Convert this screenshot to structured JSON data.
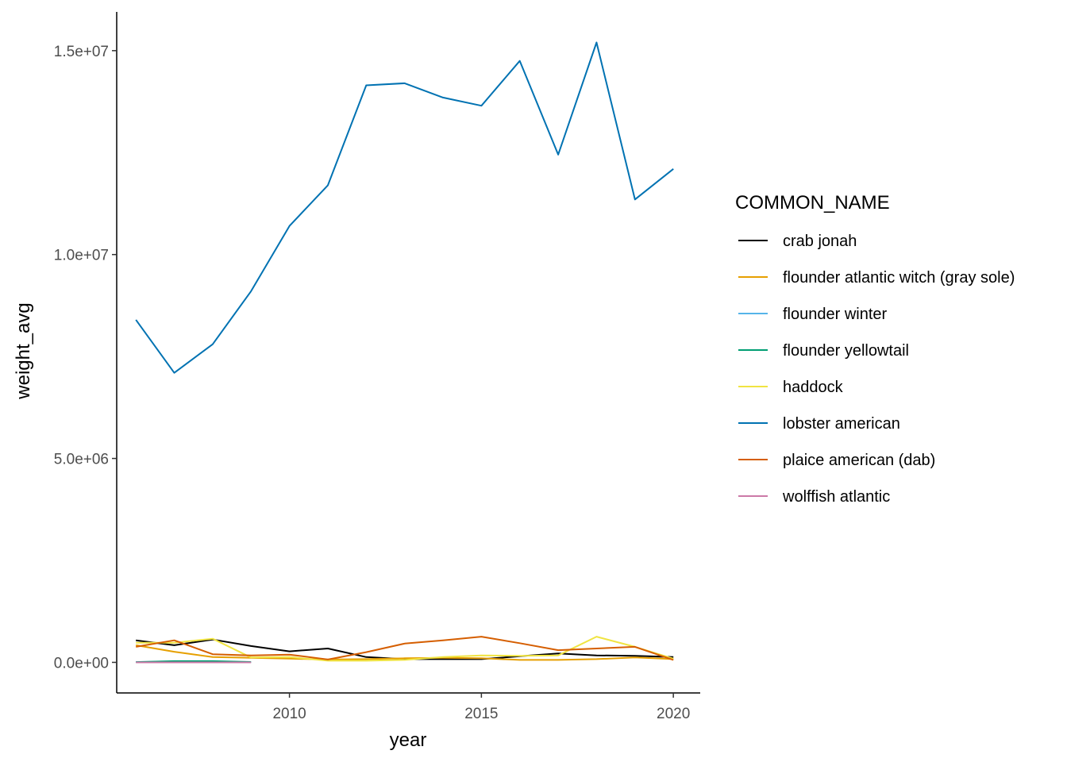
{
  "chart_data": {
    "type": "line",
    "xlabel": "year",
    "ylabel": "weight_avg",
    "xlim": [
      2005.5,
      2020.7
    ],
    "ylim": [
      -750000,
      15950000
    ],
    "x_ticks": [
      2010,
      2015,
      2020
    ],
    "x_tick_labels": [
      "2010",
      "2015",
      "2020"
    ],
    "y_ticks": [
      0,
      5000000,
      10000000,
      15000000
    ],
    "y_tick_labels": [
      "0.0e+00",
      "5.0e+06",
      "1.0e+07",
      "1.5e+07"
    ],
    "grid": false,
    "legend": {
      "title": "COMMON_NAME",
      "position": "right"
    },
    "series": [
      {
        "name": "crab jonah",
        "color": "#000000",
        "x": [
          2006,
          2007,
          2008,
          2009,
          2010,
          2011,
          2012,
          2013,
          2014,
          2015,
          2016,
          2017,
          2018,
          2019,
          2020
        ],
        "y": [
          540000,
          420000,
          560000,
          400000,
          270000,
          340000,
          130000,
          80000,
          80000,
          80000,
          150000,
          220000,
          170000,
          160000,
          130000
        ]
      },
      {
        "name": "flounder atlantic witch (gray sole)",
        "color": "#E69F00",
        "x": [
          2006,
          2007,
          2008,
          2009,
          2010,
          2011,
          2012,
          2013,
          2014,
          2015,
          2016,
          2017,
          2018,
          2019,
          2020
        ],
        "y": [
          420000,
          260000,
          130000,
          110000,
          90000,
          70000,
          80000,
          100000,
          110000,
          100000,
          60000,
          60000,
          80000,
          120000,
          80000
        ]
      },
      {
        "name": "flounder winter",
        "color": "#56B4E9",
        "x": [
          2006,
          2007,
          2008,
          2009
        ],
        "y": [
          10000,
          15000,
          15000,
          5000
        ]
      },
      {
        "name": "flounder yellowtail",
        "color": "#009E73",
        "x": [
          2006,
          2007,
          2008,
          2009
        ],
        "y": [
          8000,
          30000,
          30000,
          10000
        ]
      },
      {
        "name": "haddock",
        "color": "#F0E442",
        "x": [
          2006,
          2007,
          2008,
          2009,
          2010,
          2011,
          2012,
          2013,
          2014,
          2015,
          2016,
          2017,
          2018,
          2019,
          2020
        ],
        "y": [
          480000,
          480000,
          580000,
          120000,
          130000,
          40000,
          40000,
          60000,
          130000,
          170000,
          160000,
          170000,
          630000,
          380000,
          90000
        ]
      },
      {
        "name": "lobster american",
        "color": "#0072B2",
        "x": [
          2006,
          2007,
          2008,
          2009,
          2010,
          2011,
          2012,
          2013,
          2014,
          2015,
          2016,
          2017,
          2018,
          2019,
          2020
        ],
        "y": [
          8400000,
          7100000,
          7800000,
          9100000,
          10700000,
          11700000,
          14150000,
          14200000,
          13850000,
          13650000,
          14750000,
          12450000,
          15200000,
          11350000,
          12100000
        ]
      },
      {
        "name": "plaice american (dab)",
        "color": "#D55E00",
        "x": [
          2006,
          2007,
          2008,
          2009,
          2010,
          2011,
          2012,
          2013,
          2014,
          2015,
          2016,
          2017,
          2018,
          2019,
          2020
        ],
        "y": [
          380000,
          540000,
          200000,
          170000,
          190000,
          70000,
          250000,
          460000,
          540000,
          630000,
          470000,
          300000,
          340000,
          380000,
          60000
        ]
      },
      {
        "name": "wolffish atlantic",
        "color": "#CC79A7",
        "x": [
          2006,
          2007,
          2008,
          2009
        ],
        "y": [
          0,
          0,
          0,
          0
        ]
      }
    ]
  }
}
